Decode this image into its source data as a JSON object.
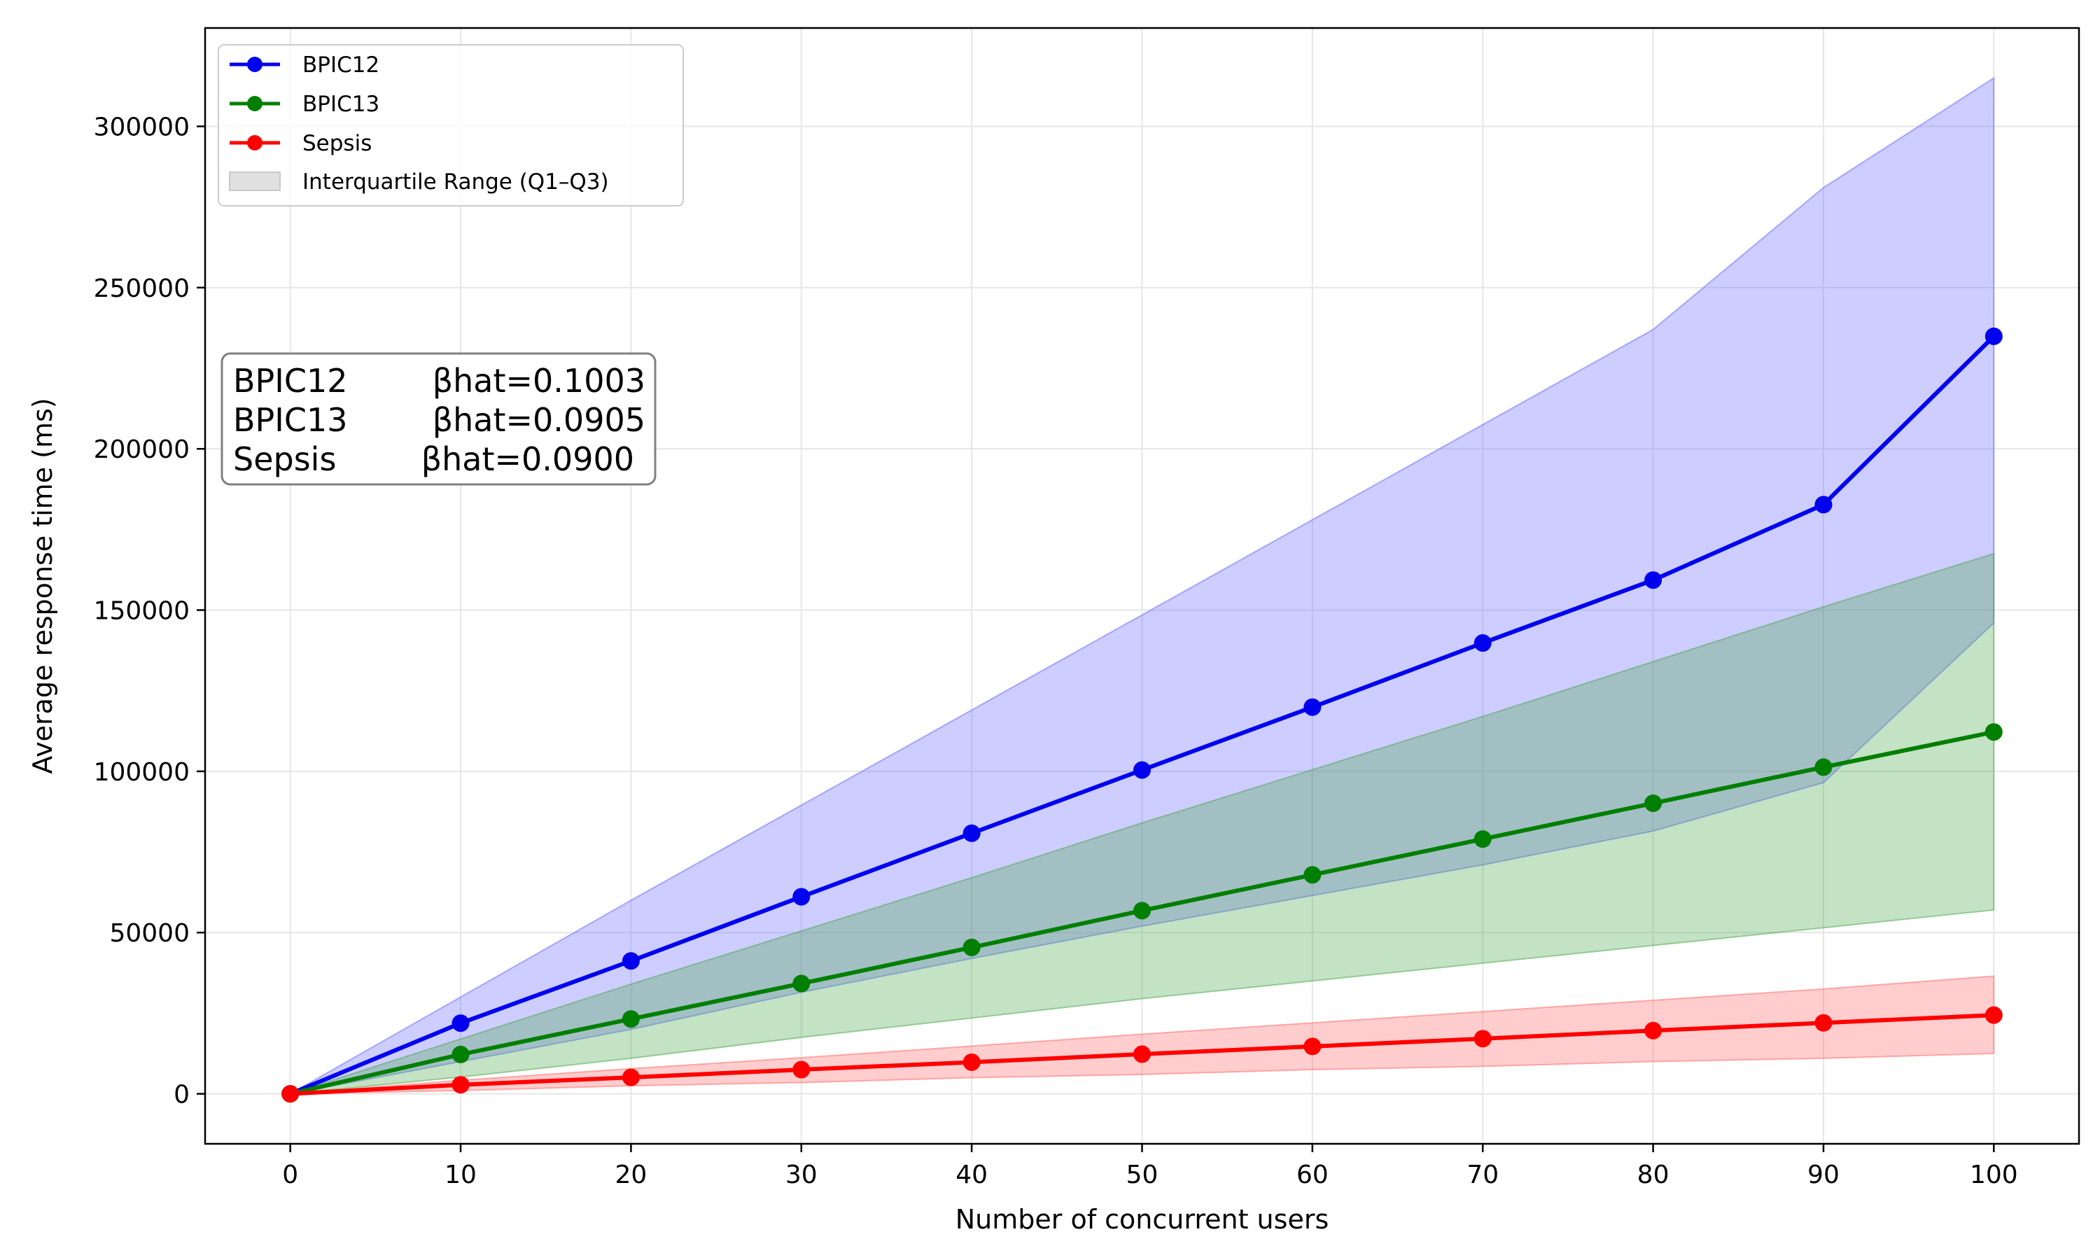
{
  "chart_data": {
    "type": "line",
    "title": "",
    "xlabel": "Number of concurrent users",
    "ylabel": "Average response time (ms)",
    "x": [
      0,
      10,
      20,
      30,
      40,
      50,
      60,
      70,
      80,
      90,
      100
    ],
    "xlim": [
      -5,
      105
    ],
    "ylim": [
      -15500,
      330500
    ],
    "xticks": [
      0,
      10,
      20,
      30,
      40,
      50,
      60,
      70,
      80,
      90,
      100
    ],
    "yticks": [
      0,
      50000,
      100000,
      150000,
      200000,
      250000,
      300000
    ],
    "grid": true,
    "legend_position": "top-left",
    "series": [
      {
        "name": "BPIC12",
        "color": "#0000ee",
        "band_color": "#6666ff",
        "values": [
          0,
          21900,
          41200,
          61100,
          80800,
          100400,
          119900,
          139800,
          159300,
          182700,
          234900
        ],
        "q1": [
          0,
          10000,
          20000,
          31500,
          42000,
          52000,
          61500,
          71000,
          81500,
          96500,
          146000
        ],
        "q3": [
          0,
          30000,
          60000,
          89500,
          119000,
          148500,
          178000,
          207500,
          237000,
          281000,
          315000
        ]
      },
      {
        "name": "BPIC13",
        "color": "#007f00",
        "band_color": "#4ca64c",
        "values": [
          0,
          12200,
          23200,
          34200,
          45400,
          56800,
          67900,
          79000,
          90100,
          101300,
          112200
        ],
        "q1": [
          0,
          5200,
          11000,
          17500,
          23500,
          29500,
          35000,
          40500,
          46000,
          51500,
          57000
        ],
        "q3": [
          0,
          17000,
          34000,
          50500,
          67000,
          84000,
          100500,
          117000,
          134000,
          151000,
          167500
        ]
      },
      {
        "name": "Sepsis",
        "color": "#ff0000",
        "band_color": "#ff6666",
        "values": [
          0,
          2800,
          5100,
          7500,
          9800,
          12300,
          14700,
          17100,
          19600,
          22000,
          24400
        ],
        "q1": [
          0,
          1000,
          2500,
          3500,
          5000,
          6000,
          7500,
          8500,
          10000,
          11000,
          12500
        ],
        "q3": [
          0,
          4200,
          7800,
          11200,
          14800,
          18500,
          22000,
          25500,
          29000,
          32500,
          36500
        ]
      }
    ],
    "legend": {
      "entries": [
        "BPIC12",
        "BPIC13",
        "Sepsis"
      ],
      "band_label": "Interquartile Range (Q1–Q3)"
    },
    "annotation": {
      "lines": [
        {
          "name": "BPIC12",
          "value": "βhat=0.1003"
        },
        {
          "name": "BPIC13",
          "value": "βhat=0.0905"
        },
        {
          "name": "Sepsis",
          "value": "βhat=0.0900"
        }
      ]
    }
  }
}
